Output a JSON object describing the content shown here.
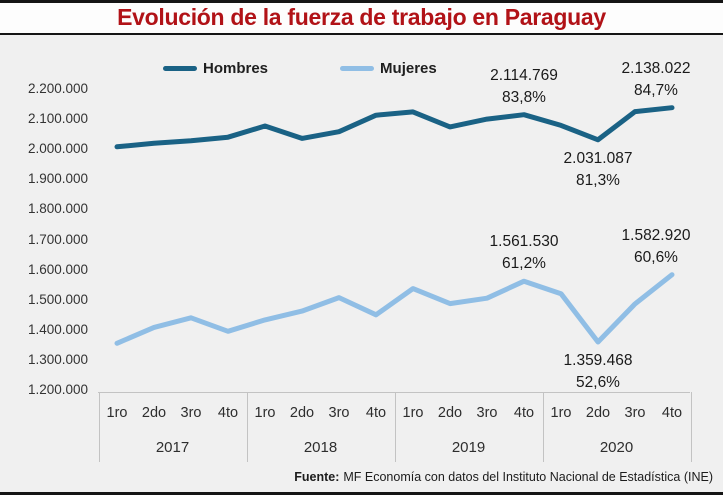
{
  "title": "Evolución de la fuerza de trabajo en Paraguay",
  "colors": {
    "title_red": "#b11217",
    "hombres_line": "#1a6285",
    "mujeres_line": "#90bee5",
    "chart_background": "#f0f0f0"
  },
  "legend": [
    {
      "label": "Hombres",
      "color": "#1a6285"
    },
    {
      "label": "Mujeres",
      "color": "#90bee5"
    }
  ],
  "footer": {
    "source_label": "Fuente:",
    "source_text": "MF Economía con datos del Instituto Nacional de Estadística (INE)"
  },
  "chart_data": {
    "type": "line",
    "title": "Evolución de la fuerza de trabajo en Paraguay",
    "xlabel": "",
    "ylabel": "",
    "ylim": [
      1200000,
      2200000
    ],
    "grid": false,
    "legend_position": "top",
    "categories": [
      "1ro",
      "2do",
      "3ro",
      "4to",
      "1ro",
      "2do",
      "3ro",
      "4to",
      "1ro",
      "2do",
      "3ro",
      "4to",
      "1ro",
      "2do",
      "3ro",
      "4to"
    ],
    "year_groups": [
      "2017",
      "2018",
      "2019",
      "2020"
    ],
    "y_ticks": [
      "2.200.000",
      "2.100.000",
      "2.000.000",
      "1.900.000",
      "1.800.000",
      "1.700.000",
      "1.600.000",
      "1.500.000",
      "1.400.000",
      "1.300.000",
      "1.200.000"
    ],
    "series": [
      {
        "name": "Hombres",
        "color": "#1a6285",
        "values": [
          2008000,
          2020000,
          2028000,
          2040000,
          2077000,
          2036000,
          2058000,
          2113000,
          2124000,
          2074000,
          2100000,
          2114769,
          2079000,
          2031087,
          2125000,
          2138022
        ]
      },
      {
        "name": "Mujeres",
        "color": "#90bee5",
        "values": [
          1355000,
          1408000,
          1440000,
          1395000,
          1433000,
          1462000,
          1507000,
          1450000,
          1537000,
          1487000,
          1505000,
          1561530,
          1520000,
          1359468,
          1486000,
          1582920
        ]
      }
    ],
    "annotations": [
      {
        "series_index": 0,
        "point_index": 11,
        "value": "2.114.769",
        "percent": "83,8%",
        "position": "above"
      },
      {
        "series_index": 0,
        "point_index": 13,
        "value": "2.031.087",
        "percent": "81,3%",
        "position": "below"
      },
      {
        "series_index": 0,
        "point_index": 15,
        "value": "2.138.022",
        "percent": "84,7%",
        "position": "above"
      },
      {
        "series_index": 1,
        "point_index": 11,
        "value": "1.561.530",
        "percent": "61,2%",
        "position": "above"
      },
      {
        "series_index": 1,
        "point_index": 13,
        "value": "1.359.468",
        "percent": "52,6%",
        "position": "below"
      },
      {
        "series_index": 1,
        "point_index": 15,
        "value": "1.582.920",
        "percent": "60,6%",
        "position": "above"
      }
    ]
  }
}
